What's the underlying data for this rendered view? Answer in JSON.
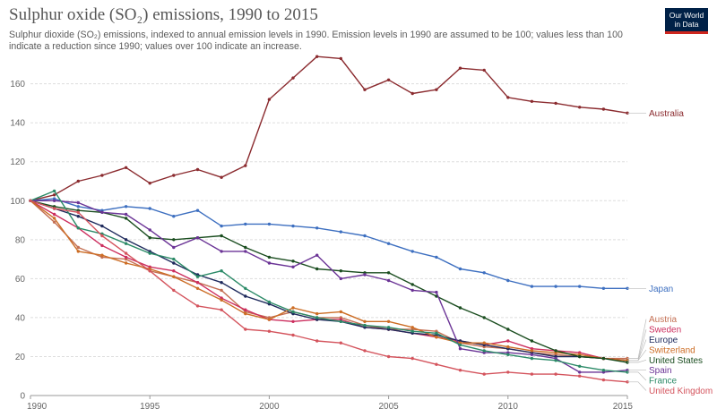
{
  "header": {
    "title": "Sulphur oxide (SO₂) emissions, 1990 to 2015",
    "subtitle": "Sulphur dioxide (SO₂) emissions, indexed to annual emission levels in 1990. Emission levels in 1990 are assumed to be 100; values less than 100 indicate a reduction since 1990; values over 100 indicate an increase.",
    "logo_line1": "Our World",
    "logo_line2": "in Data"
  },
  "chart_data": {
    "type": "line",
    "title": "Sulphur oxide (SO₂) emissions, 1990 to 2015",
    "xlabel": "",
    "ylabel": "",
    "x": [
      1990,
      1991,
      1992,
      1993,
      1994,
      1995,
      1996,
      1997,
      1998,
      1999,
      2000,
      2001,
      2002,
      2003,
      2004,
      2005,
      2006,
      2007,
      2008,
      2009,
      2010,
      2011,
      2012,
      2013,
      2014,
      2015
    ],
    "xlim": [
      1990,
      2015
    ],
    "ylim": [
      0,
      175
    ],
    "xticks": [
      1990,
      1995,
      2000,
      2005,
      2010,
      2015
    ],
    "yticks": [
      0,
      20,
      40,
      60,
      80,
      100,
      120,
      140,
      160
    ],
    "grid": true,
    "legend": "right (labels at line ends)",
    "series": [
      {
        "name": "Australia",
        "color": "#8b2b2f",
        "values": [
          100,
          103,
          110,
          113,
          117,
          109,
          113,
          116,
          112,
          118,
          152,
          163,
          174,
          173,
          157,
          162,
          155,
          157,
          168,
          167,
          153,
          151,
          150,
          148,
          147,
          145
        ]
      },
      {
        "name": "Japan",
        "color": "#3d6fc0",
        "values": [
          100,
          101,
          97,
          95,
          97,
          96,
          92,
          95,
          87,
          88,
          88,
          87,
          86,
          84,
          82,
          78,
          74,
          71,
          65,
          63,
          59,
          56,
          56,
          56,
          55,
          55
        ]
      },
      {
        "name": "Austria",
        "color": "#c47054",
        "values": [
          100,
          89,
          76,
          71,
          70,
          64,
          61,
          58,
          54,
          43,
          40,
          43,
          40,
          40,
          36,
          34,
          34,
          33,
          27,
          25,
          24,
          22,
          21,
          20,
          19,
          19
        ]
      },
      {
        "name": "Sweden",
        "color": "#cc2e5e",
        "values": [
          100,
          93,
          86,
          77,
          71,
          66,
          64,
          58,
          50,
          44,
          39,
          38,
          39,
          39,
          35,
          34,
          32,
          30,
          28,
          26,
          28,
          24,
          23,
          22,
          19,
          18
        ]
      },
      {
        "name": "Europe",
        "color": "#1e2a5c",
        "values": [
          100,
          96,
          92,
          87,
          80,
          74,
          68,
          62,
          58,
          51,
          47,
          42,
          39,
          38,
          35,
          34,
          32,
          31,
          28,
          26,
          24,
          22,
          20,
          20,
          19,
          18
        ]
      },
      {
        "name": "Switzerland",
        "color": "#cc6d25",
        "values": [
          100,
          91,
          74,
          72,
          68,
          65,
          61,
          55,
          49,
          42,
          39,
          45,
          42,
          43,
          38,
          38,
          35,
          30,
          27,
          27,
          25,
          23,
          22,
          21,
          19,
          18
        ]
      },
      {
        "name": "United States",
        "color": "#1a4d1f",
        "values": [
          100,
          97,
          95,
          94,
          91,
          81,
          80,
          81,
          82,
          76,
          71,
          69,
          65,
          64,
          63,
          63,
          57,
          51,
          45,
          40,
          34,
          28,
          23,
          20,
          19,
          17
        ]
      },
      {
        "name": "Spain",
        "color": "#6b3496",
        "values": [
          100,
          100,
          99,
          94,
          93,
          85,
          76,
          81,
          74,
          74,
          68,
          66,
          72,
          60,
          62,
          59,
          54,
          53,
          24,
          22,
          22,
          21,
          19,
          12,
          12,
          13
        ]
      },
      {
        "name": "France",
        "color": "#2b8a67",
        "values": [
          100,
          105,
          86,
          83,
          78,
          73,
          70,
          61,
          64,
          55,
          48,
          43,
          40,
          38,
          36,
          35,
          33,
          32,
          26,
          23,
          21,
          19,
          18,
          15,
          13,
          12
        ]
      },
      {
        "name": "United Kingdom",
        "color": "#d4545d",
        "values": [
          100,
          96,
          94,
          82,
          73,
          64,
          54,
          46,
          44,
          34,
          33,
          31,
          28,
          27,
          23,
          20,
          19,
          16,
          13,
          11,
          12,
          11,
          11,
          10,
          8,
          7
        ]
      }
    ]
  }
}
